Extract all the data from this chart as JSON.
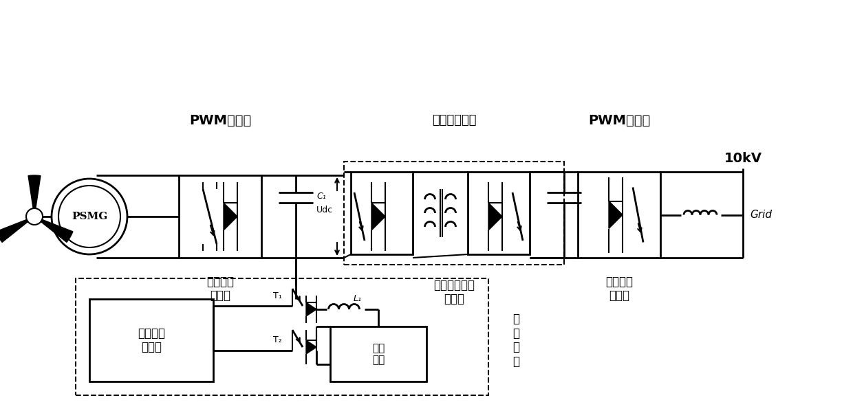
{
  "bg_color": "#ffffff",
  "line_color": "#000000",
  "title_pwm1": "PWM变流器",
  "title_dc": "直流升压环节",
  "title_pwm2": "PWM变流器",
  "label_rectifier": "整流电路\n控制器",
  "label_dc_ctrl": "直流升压电路\n控制器",
  "label_inv_ctrl": "逆变电路\n控制器",
  "label_energy_ctrl": "储能电路\n控制器",
  "label_psmg": "PSMG",
  "label_c1": "C₁",
  "label_udc": "Udc",
  "label_l1": "L₁",
  "label_t1": "T₁",
  "label_t2": "T₂",
  "label_super_cap": "超级\n电容",
  "label_energy_dev": "储\n能\n装\n置",
  "label_10kv": "10kV",
  "label_grid": "Grid",
  "fig_width": 12.4,
  "fig_height": 5.95
}
